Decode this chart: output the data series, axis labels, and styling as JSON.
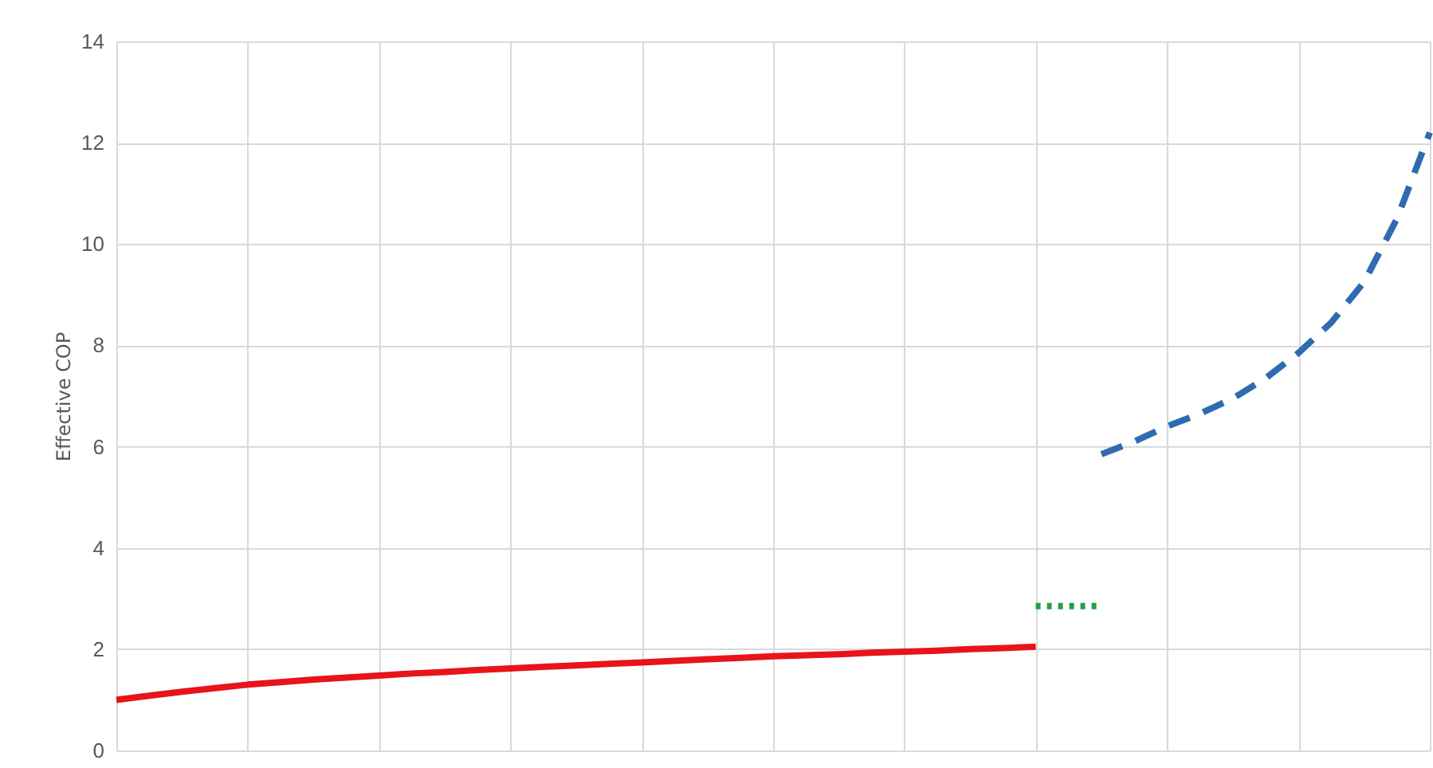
{
  "chart_data": {
    "type": "line",
    "ylabel": "Effective COP",
    "categories": [
      null,
      null,
      null,
      null,
      null,
      null,
      null,
      null,
      null,
      null,
      null,
      null,
      null,
      null,
      null,
      null,
      null,
      null,
      null,
      null,
      null,
      null,
      null,
      null,
      null,
      null,
      null,
      null,
      null,
      null,
      null,
      null,
      null,
      null,
      null,
      null,
      null,
      null,
      null,
      null,
      null
    ],
    "ylim": [
      0,
      14
    ],
    "yticks": [
      0,
      2,
      4,
      6,
      8,
      10,
      12,
      14
    ],
    "grid": true,
    "tick_labels": "y",
    "marker": "none",
    "series": [
      {
        "color": "#e8141b",
        "line_style": "solid",
        "values": [
          1.0,
          1.08,
          1.16,
          1.23,
          1.3,
          1.35,
          1.4,
          1.44,
          1.48,
          1.52,
          1.55,
          1.59,
          1.62,
          1.65,
          1.68,
          1.71,
          1.74,
          1.77,
          1.8,
          1.83,
          1.86,
          1.88,
          1.9,
          1.93,
          1.95,
          1.97,
          2.0,
          2.02,
          2.05,
          null,
          null,
          null,
          null,
          null,
          null,
          null,
          null,
          null,
          null,
          null,
          null
        ]
      },
      {
        "color": "#22a045",
        "line_style": "dotted",
        "values": [
          null,
          null,
          null,
          null,
          null,
          null,
          null,
          null,
          null,
          null,
          null,
          null,
          null,
          null,
          null,
          null,
          null,
          null,
          null,
          null,
          null,
          null,
          null,
          null,
          null,
          null,
          null,
          null,
          2.85,
          2.85,
          2.85,
          null,
          null,
          null,
          null,
          null,
          null,
          null,
          null,
          null,
          null
        ]
      },
      {
        "color": "#2e6bb0",
        "line_style": "dashed",
        "values": [
          null,
          null,
          null,
          null,
          null,
          null,
          null,
          null,
          null,
          null,
          null,
          null,
          null,
          null,
          null,
          null,
          null,
          null,
          null,
          null,
          null,
          null,
          null,
          null,
          null,
          null,
          null,
          null,
          null,
          null,
          5.85,
          6.1,
          6.4,
          6.65,
          6.95,
          7.35,
          7.85,
          8.45,
          9.25,
          10.5,
          12.2
        ]
      }
    ]
  }
}
